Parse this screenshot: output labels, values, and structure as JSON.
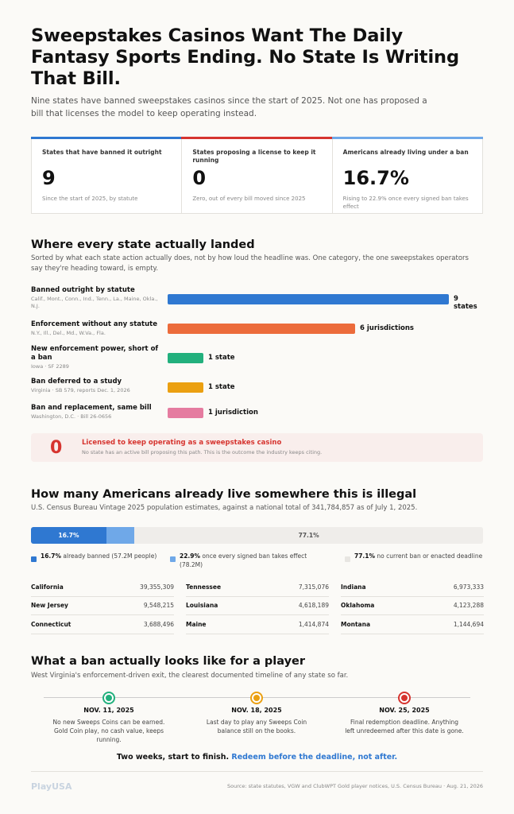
{
  "headline": "Sweepstakes Casinos Want The Daily Fantasy Sports Ending. No State Is Writing That Bill.",
  "dek": "Nine states have banned sweepstakes casinos since the start of 2025. Not one has proposed a bill that licenses the model to keep operating instead.",
  "kpis": [
    {
      "label": "States that have banned it outright",
      "value": "9",
      "sub": "Since the start of 2025, by statute",
      "accent": "#2f78d1"
    },
    {
      "label": "States proposing a license to keep it running",
      "value": "0",
      "sub": "Zero, out of every bill moved since 2025",
      "accent": "#d6342f"
    },
    {
      "label": "Americans already living under a ban",
      "value": "16.7%",
      "sub": "Rising to 22.9% once every signed ban takes effect",
      "accent": "#6fa8e8"
    }
  ],
  "section1": {
    "title": "Where every state actually landed",
    "sub": "Sorted by what each state action actually does, not by how loud the headline was. One category, the one sweepstakes operators say they're heading toward, is empty."
  },
  "chart_data": [
    {
      "type": "bar",
      "categories": [
        "Banned outright by statute",
        "Enforcement without any statute",
        "New enforcement power, short of a ban",
        "Ban deferred to a study",
        "Ban and replacement, same bill",
        "Licensed to keep operating as a sweepstakes casino"
      ],
      "values": [
        9,
        6,
        1,
        1,
        1,
        0
      ],
      "value_labels": [
        "9 states",
        "6 jurisdictions",
        "1 state",
        "1 state",
        "1 jurisdiction",
        "0"
      ],
      "details": [
        "Calif., Mont., Conn., Ind., Tenn., La., Maine, Okla., N.J.",
        "N.Y., Ill., Del., Md., W.Va., Fla.",
        "Iowa · SF 2289",
        "Virginia · SB 579, reports Dec. 1, 2026",
        "Washington, D.C. · Bill 26-0656",
        "No state has an active bill proposing this path. This is the outcome the industry keeps citing."
      ],
      "colors": [
        "#2f78d1",
        "#ec6b3b",
        "#22b07d",
        "#eba011",
        "#e57ca0",
        "#d6342f"
      ],
      "xlim": [
        0,
        9
      ]
    },
    {
      "type": "bar",
      "stacked": true,
      "title": "How many Americans already live somewhere this is illegal",
      "subtitle": "U.S. Census Bureau Vintage 2025 population estimates, against a national total of 341,784,857 as of July 1, 2025.",
      "series": [
        {
          "value": 16.7,
          "label": "16.7%",
          "legend_bold": "16.7%",
          "legend_text": "already banned (57.2M people)",
          "color": "#2f78d1"
        },
        {
          "value": 6.2,
          "label": "",
          "legend_bold": "22.9%",
          "legend_text": "once every signed ban takes effect (78.2M)",
          "color": "#6fa8e8"
        },
        {
          "value": 77.1,
          "label": "77.1%",
          "legend_bold": "77.1%",
          "legend_text": "no current ban or enacted deadline",
          "color": "#efedea"
        }
      ]
    }
  ],
  "states": [
    [
      {
        "name": "California",
        "pop": "39,355,309"
      },
      {
        "name": "New Jersey",
        "pop": "9,548,215"
      },
      {
        "name": "Connecticut",
        "pop": "3,688,496"
      }
    ],
    [
      {
        "name": "Tennessee",
        "pop": "7,315,076"
      },
      {
        "name": "Louisiana",
        "pop": "4,618,189"
      },
      {
        "name": "Maine",
        "pop": "1,414,874"
      }
    ],
    [
      {
        "name": "Indiana",
        "pop": "6,973,333"
      },
      {
        "name": "Oklahoma",
        "pop": "4,123,288"
      },
      {
        "name": "Montana",
        "pop": "1,144,694"
      }
    ]
  ],
  "section3": {
    "title": "What a ban actually looks like for a player",
    "sub": "West Virginia's enforcement-driven exit, the clearest documented timeline of any state so far."
  },
  "timeline": [
    {
      "date": "NOV. 11, 2025",
      "desc": "No new Sweeps Coins can be earned. Gold Coin play, no cash value, keeps running.",
      "color": "#22b07d"
    },
    {
      "date": "NOV. 18, 2025",
      "desc": "Last day to play any Sweeps Coin balance still on the books.",
      "color": "#eba011"
    },
    {
      "date": "NOV. 25, 2025",
      "desc": "Final redemption deadline. Anything left unredeemed after this date is gone.",
      "color": "#d6342f"
    }
  ],
  "closing": {
    "lead": "Two weeks, start to finish.",
    "highlight": "Redeem before the deadline, not after."
  },
  "footer": {
    "brand": "PlayUSA",
    "source": "Source: state statutes, VGW and ClubWPT Gold player notices, U.S. Census Bureau · Aug. 21, 2026"
  }
}
